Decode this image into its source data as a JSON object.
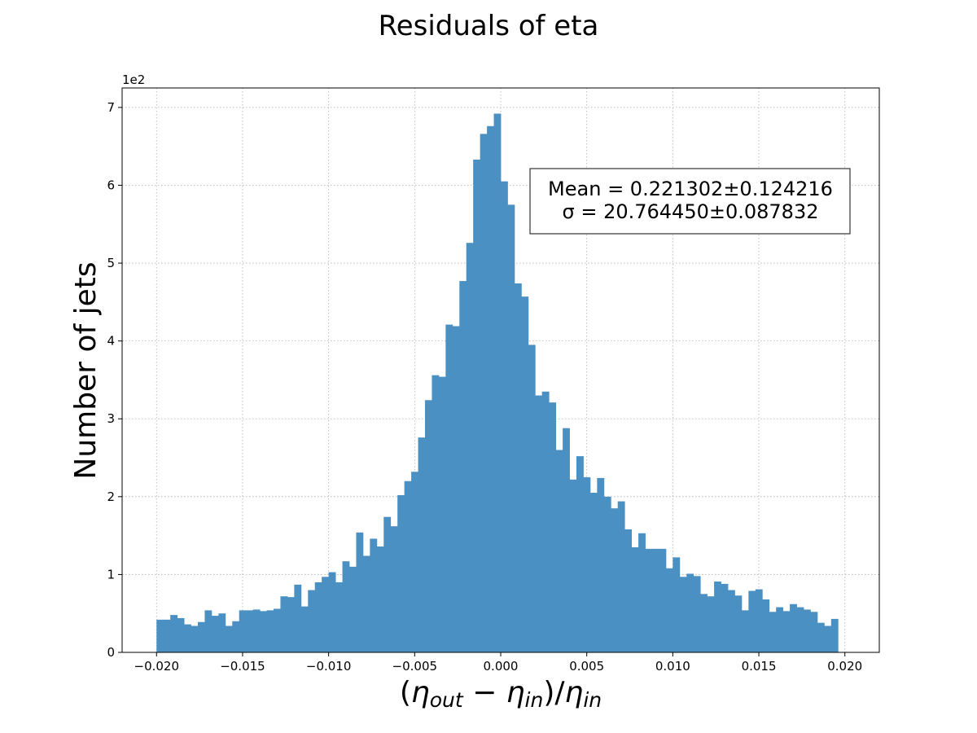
{
  "chart_data": {
    "type": "bar",
    "title": "Residuals of eta",
    "xlabel": "(η_out − η_in)/η_in",
    "ylabel": "Number of jets",
    "y_scale_label": "1e2",
    "xlim": [
      -0.022,
      0.022
    ],
    "ylim": [
      0,
      7.25
    ],
    "x_ticks": [
      -0.02,
      -0.015,
      -0.01,
      -0.005,
      0.0,
      0.005,
      0.01,
      0.015,
      0.02
    ],
    "x_tick_labels": [
      "−0.020",
      "−0.015",
      "−0.010",
      "−0.005",
      "0.000",
      "0.005",
      "0.010",
      "0.015",
      "0.020"
    ],
    "y_ticks": [
      0,
      1,
      2,
      3,
      4,
      5,
      6,
      7
    ],
    "y_tick_labels": [
      "0",
      "1",
      "2",
      "3",
      "4",
      "5",
      "6",
      "7"
    ],
    "grid": true,
    "bar_color": "#4a90c2",
    "bin_range": [
      -0.02,
      0.02
    ],
    "bin_count": 100,
    "values": [
      0.42,
      0.42,
      0.48,
      0.44,
      0.36,
      0.34,
      0.39,
      0.54,
      0.47,
      0.5,
      0.34,
      0.4,
      0.54,
      0.54,
      0.55,
      0.53,
      0.54,
      0.56,
      0.72,
      0.71,
      0.87,
      0.59,
      0.8,
      0.9,
      0.97,
      1.03,
      0.9,
      1.17,
      1.1,
      1.54,
      1.24,
      1.46,
      1.36,
      1.74,
      1.62,
      2.02,
      2.2,
      2.32,
      2.76,
      3.24,
      3.56,
      3.54,
      4.21,
      4.19,
      4.77,
      5.26,
      6.33,
      6.66,
      6.76,
      6.92,
      6.05,
      5.75,
      4.74,
      4.57,
      3.95,
      3.3,
      3.35,
      3.21,
      2.6,
      2.88,
      2.22,
      2.52,
      2.25,
      2.05,
      2.24,
      2.0,
      1.85,
      1.94,
      1.58,
      1.35,
      1.53,
      1.33,
      1.33,
      1.33,
      1.08,
      1.22,
      0.97,
      1.01,
      0.98,
      0.75,
      0.72,
      0.91,
      0.88,
      0.8,
      0.73,
      0.54,
      0.79,
      0.81,
      0.68,
      0.52,
      0.58,
      0.53,
      0.62,
      0.58,
      0.55,
      0.52,
      0.38,
      0.34,
      0.43,
      0.0
    ],
    "annotation_lines": [
      "Mean = 0.221302±0.124216",
      "σ = 20.764450±0.087832"
    ]
  }
}
